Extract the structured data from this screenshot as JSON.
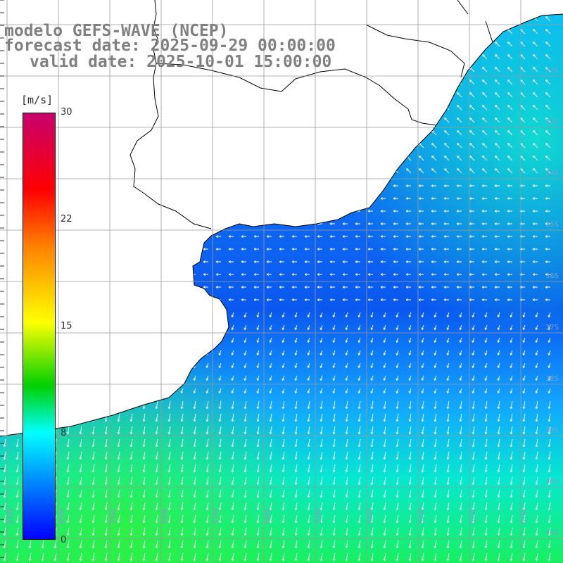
{
  "title": {
    "line1": "modelo GEFS-WAVE (NCEP)",
    "line2": "forecast date: 2025-09-29 00:00:00",
    "line3": "valid date: 2025-10-01 15:00:00"
  },
  "colorbar": {
    "unit": "[m/s]",
    "ticks": [
      "30",
      "22",
      "15",
      "8",
      "0"
    ],
    "colors": [
      "#c8006e",
      "#ff0000",
      "#ff7f00",
      "#ffff00",
      "#00d000",
      "#00ffff",
      "#0000ff"
    ]
  },
  "lat_labels": [
    "32S",
    "33S",
    "34S",
    "35S",
    "36S",
    "37S",
    "38S",
    "39S",
    "40S",
    "41S"
  ],
  "lon_labels": [
    "61W",
    "60W",
    "59W",
    "58W",
    "57W",
    "56W",
    "55W",
    "54W",
    "53W",
    "52W",
    "51W"
  ]
}
